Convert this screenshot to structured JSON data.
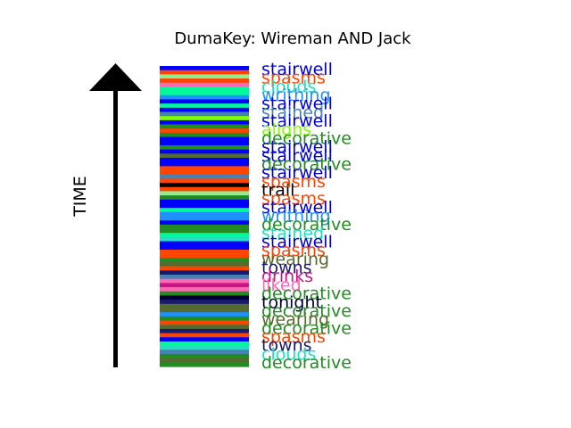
{
  "chart_data": {
    "type": "bar",
    "title": "DumaKey: Wireman AND Jack",
    "ylabel": "TIME",
    "orientation": "time runs upward (arrow)",
    "labels": [
      {
        "text": "stairwell",
        "color": "#0000dd"
      },
      {
        "text": "spasms",
        "color": "#ff4500"
      },
      {
        "text": "clouds",
        "color": "#20e0c0"
      },
      {
        "text": "writhing",
        "color": "#1e90ff"
      },
      {
        "text": "stairwell",
        "color": "#0000dd"
      },
      {
        "text": "stained",
        "color": "#4682b4"
      },
      {
        "text": "stairwell",
        "color": "#0000dd"
      },
      {
        "text": "aligns",
        "color": "#7fff00"
      },
      {
        "text": "decorative",
        "color": "#228b22"
      },
      {
        "text": "stairwell",
        "color": "#0000dd"
      },
      {
        "text": "stairwell",
        "color": "#0000dd"
      },
      {
        "text": "decorative",
        "color": "#228b22"
      },
      {
        "text": "stairwell",
        "color": "#0000dd"
      },
      {
        "text": "spasms",
        "color": "#ff4500"
      },
      {
        "text": "trail",
        "color": "#000000"
      },
      {
        "text": "spasms",
        "color": "#ff4500"
      },
      {
        "text": "stairwell",
        "color": "#0000dd"
      },
      {
        "text": "writhing",
        "color": "#1e90ff"
      },
      {
        "text": "decorative",
        "color": "#228b22"
      },
      {
        "text": "stained",
        "color": "#20e0c0"
      },
      {
        "text": "stairwell",
        "color": "#0000dd"
      },
      {
        "text": "spasms",
        "color": "#ff4500"
      },
      {
        "text": "wearing",
        "color": "#556b2f"
      },
      {
        "text": "towns",
        "color": "#191970"
      },
      {
        "text": "drinks",
        "color": "#c71585"
      },
      {
        "text": "liked",
        "color": "#ff69b4"
      },
      {
        "text": "decorative",
        "color": "#228b22"
      },
      {
        "text": "tonight",
        "color": "#000033"
      },
      {
        "text": "decorative",
        "color": "#228b22"
      },
      {
        "text": "wearing",
        "color": "#556b2f"
      },
      {
        "text": "decorative",
        "color": "#228b22"
      },
      {
        "text": "spasms",
        "color": "#ff4500"
      },
      {
        "text": "towns",
        "color": "#191970"
      },
      {
        "text": "clouds",
        "color": "#20e0c0"
      },
      {
        "text": "decorative",
        "color": "#228b22"
      }
    ],
    "stripes": [
      "#0000ff",
      "#ff4500",
      "#90ee90",
      "#ff4500",
      "#ff69b4",
      "#00fa9a",
      "#00fa9a",
      "#1e90ff",
      "#0000ff",
      "#00fa9a",
      "#0000ff",
      "#4682b4",
      "#7fff00",
      "#0000ff",
      "#228b22",
      "#ff4500",
      "#228b22",
      "#0000ff",
      "#0000ff",
      "#228b22",
      "#0000ff",
      "#556b2f",
      "#0000ff",
      "#0000ff",
      "#ff4500",
      "#ff4500",
      "#4682b4",
      "#ff4500",
      "#000000",
      "#ff4500",
      "#90ee90",
      "#228b22",
      "#0000ff",
      "#0000ff",
      "#00fa9a",
      "#1e90ff",
      "#1e90ff",
      "#0000ff",
      "#228b22",
      "#228b22",
      "#00fa9a",
      "#20e0c0",
      "#0000ff",
      "#0000ff",
      "#ff4500",
      "#ff4500",
      "#228b22",
      "#556b2f",
      "#ff4500",
      "#191970",
      "#4682b4",
      "#ff69b4",
      "#c71585",
      "#ff69b4",
      "#228b22",
      "#000033",
      "#191970",
      "#556b2f",
      "#556b2f",
      "#1e90ff",
      "#228b22",
      "#ff4500",
      "#556b2f",
      "#191970",
      "#ff4500",
      "#0000ff",
      "#00fa9a",
      "#20e0c0",
      "#4682b4",
      "#228b22",
      "#556b2f",
      "#228b22"
    ],
    "colors": {
      "arrow": "#000000",
      "title": "#000000"
    }
  }
}
